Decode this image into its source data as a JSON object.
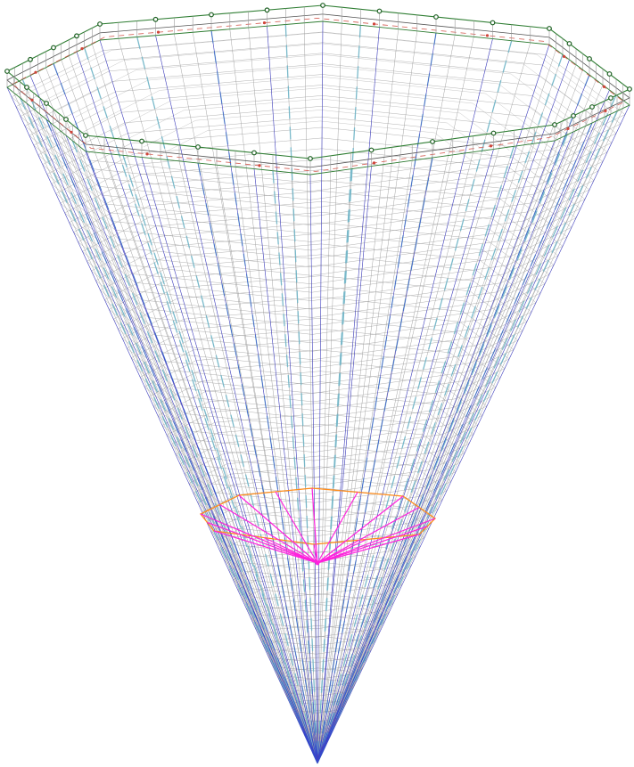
{
  "model": {
    "shape": "inverted octagonal cone (structural mesh wireframe)",
    "top_ring_sides": 8,
    "colors": {
      "background": "#ffffff",
      "mesh_grid": "#9a9a9a",
      "meridian_lines": "#2222cc",
      "dashed_guides": "#6fb6c9",
      "rim_edge": "#2e7d32",
      "rim_nodes": "#1b5e20",
      "rim_dashed": "#d0453a",
      "inner_ring": "#ff8c1a",
      "inner_struts": "#ff22dd"
    },
    "icons": [
      "node-marker-icon"
    ]
  }
}
